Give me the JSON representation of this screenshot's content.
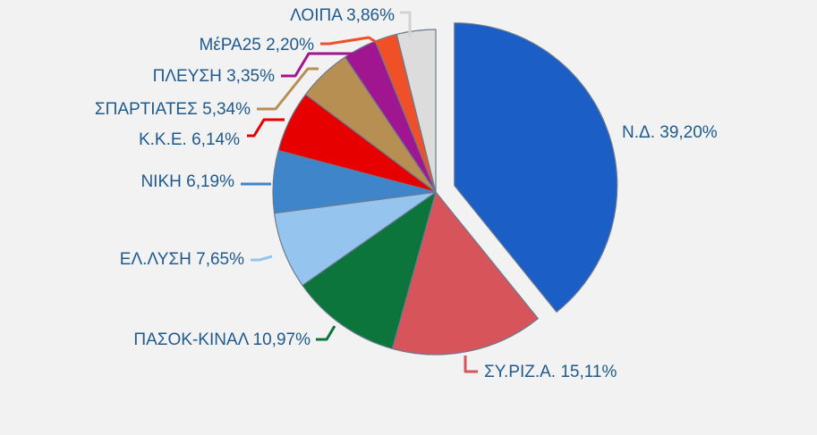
{
  "chart_data": {
    "type": "pie",
    "title": "",
    "slices": [
      {
        "label": "Ν.Δ.",
        "value": 39.2,
        "value_text": "39,20%",
        "color": "#1b5ec6",
        "exploded": true
      },
      {
        "label": "ΣΥ.ΡΙΖ.Α.",
        "value": 15.11,
        "value_text": "15,11%",
        "color": "#d6545a"
      },
      {
        "label": "ΠΑΣΟΚ-ΚΙΝΑΛ",
        "value": 10.97,
        "value_text": "10,97%",
        "color": "#0b753b"
      },
      {
        "label": "ΕΛ.ΛΥΣΗ",
        "value": 7.65,
        "value_text": "7,65%",
        "color": "#95c5ee"
      },
      {
        "label": "ΝΙΚΗ",
        "value": 6.19,
        "value_text": "6,19%",
        "color": "#3f85c9"
      },
      {
        "label": "Κ.Κ.Ε.",
        "value": 6.14,
        "value_text": "6,14%",
        "color": "#e60000"
      },
      {
        "label": "ΣΠΑΡΤΙΑΤΕΣ",
        "value": 5.34,
        "value_text": "5,34%",
        "color": "#b78f52"
      },
      {
        "label": "ΠΛΕΥΣΗ",
        "value": 3.35,
        "value_text": "3,35%",
        "color": "#a01690"
      },
      {
        "label": "ΜέΡΑ25",
        "value": 2.2,
        "value_text": "2,20%",
        "color": "#ef5028"
      },
      {
        "label": "ΛΟΙΠΑ",
        "value": 3.86,
        "value_text": "3,86%",
        "color": "#dcdcdc"
      }
    ],
    "label_color": "#1f5a8e",
    "slice_border_color": "#6b7a8f",
    "background": "#f2f2f2"
  }
}
